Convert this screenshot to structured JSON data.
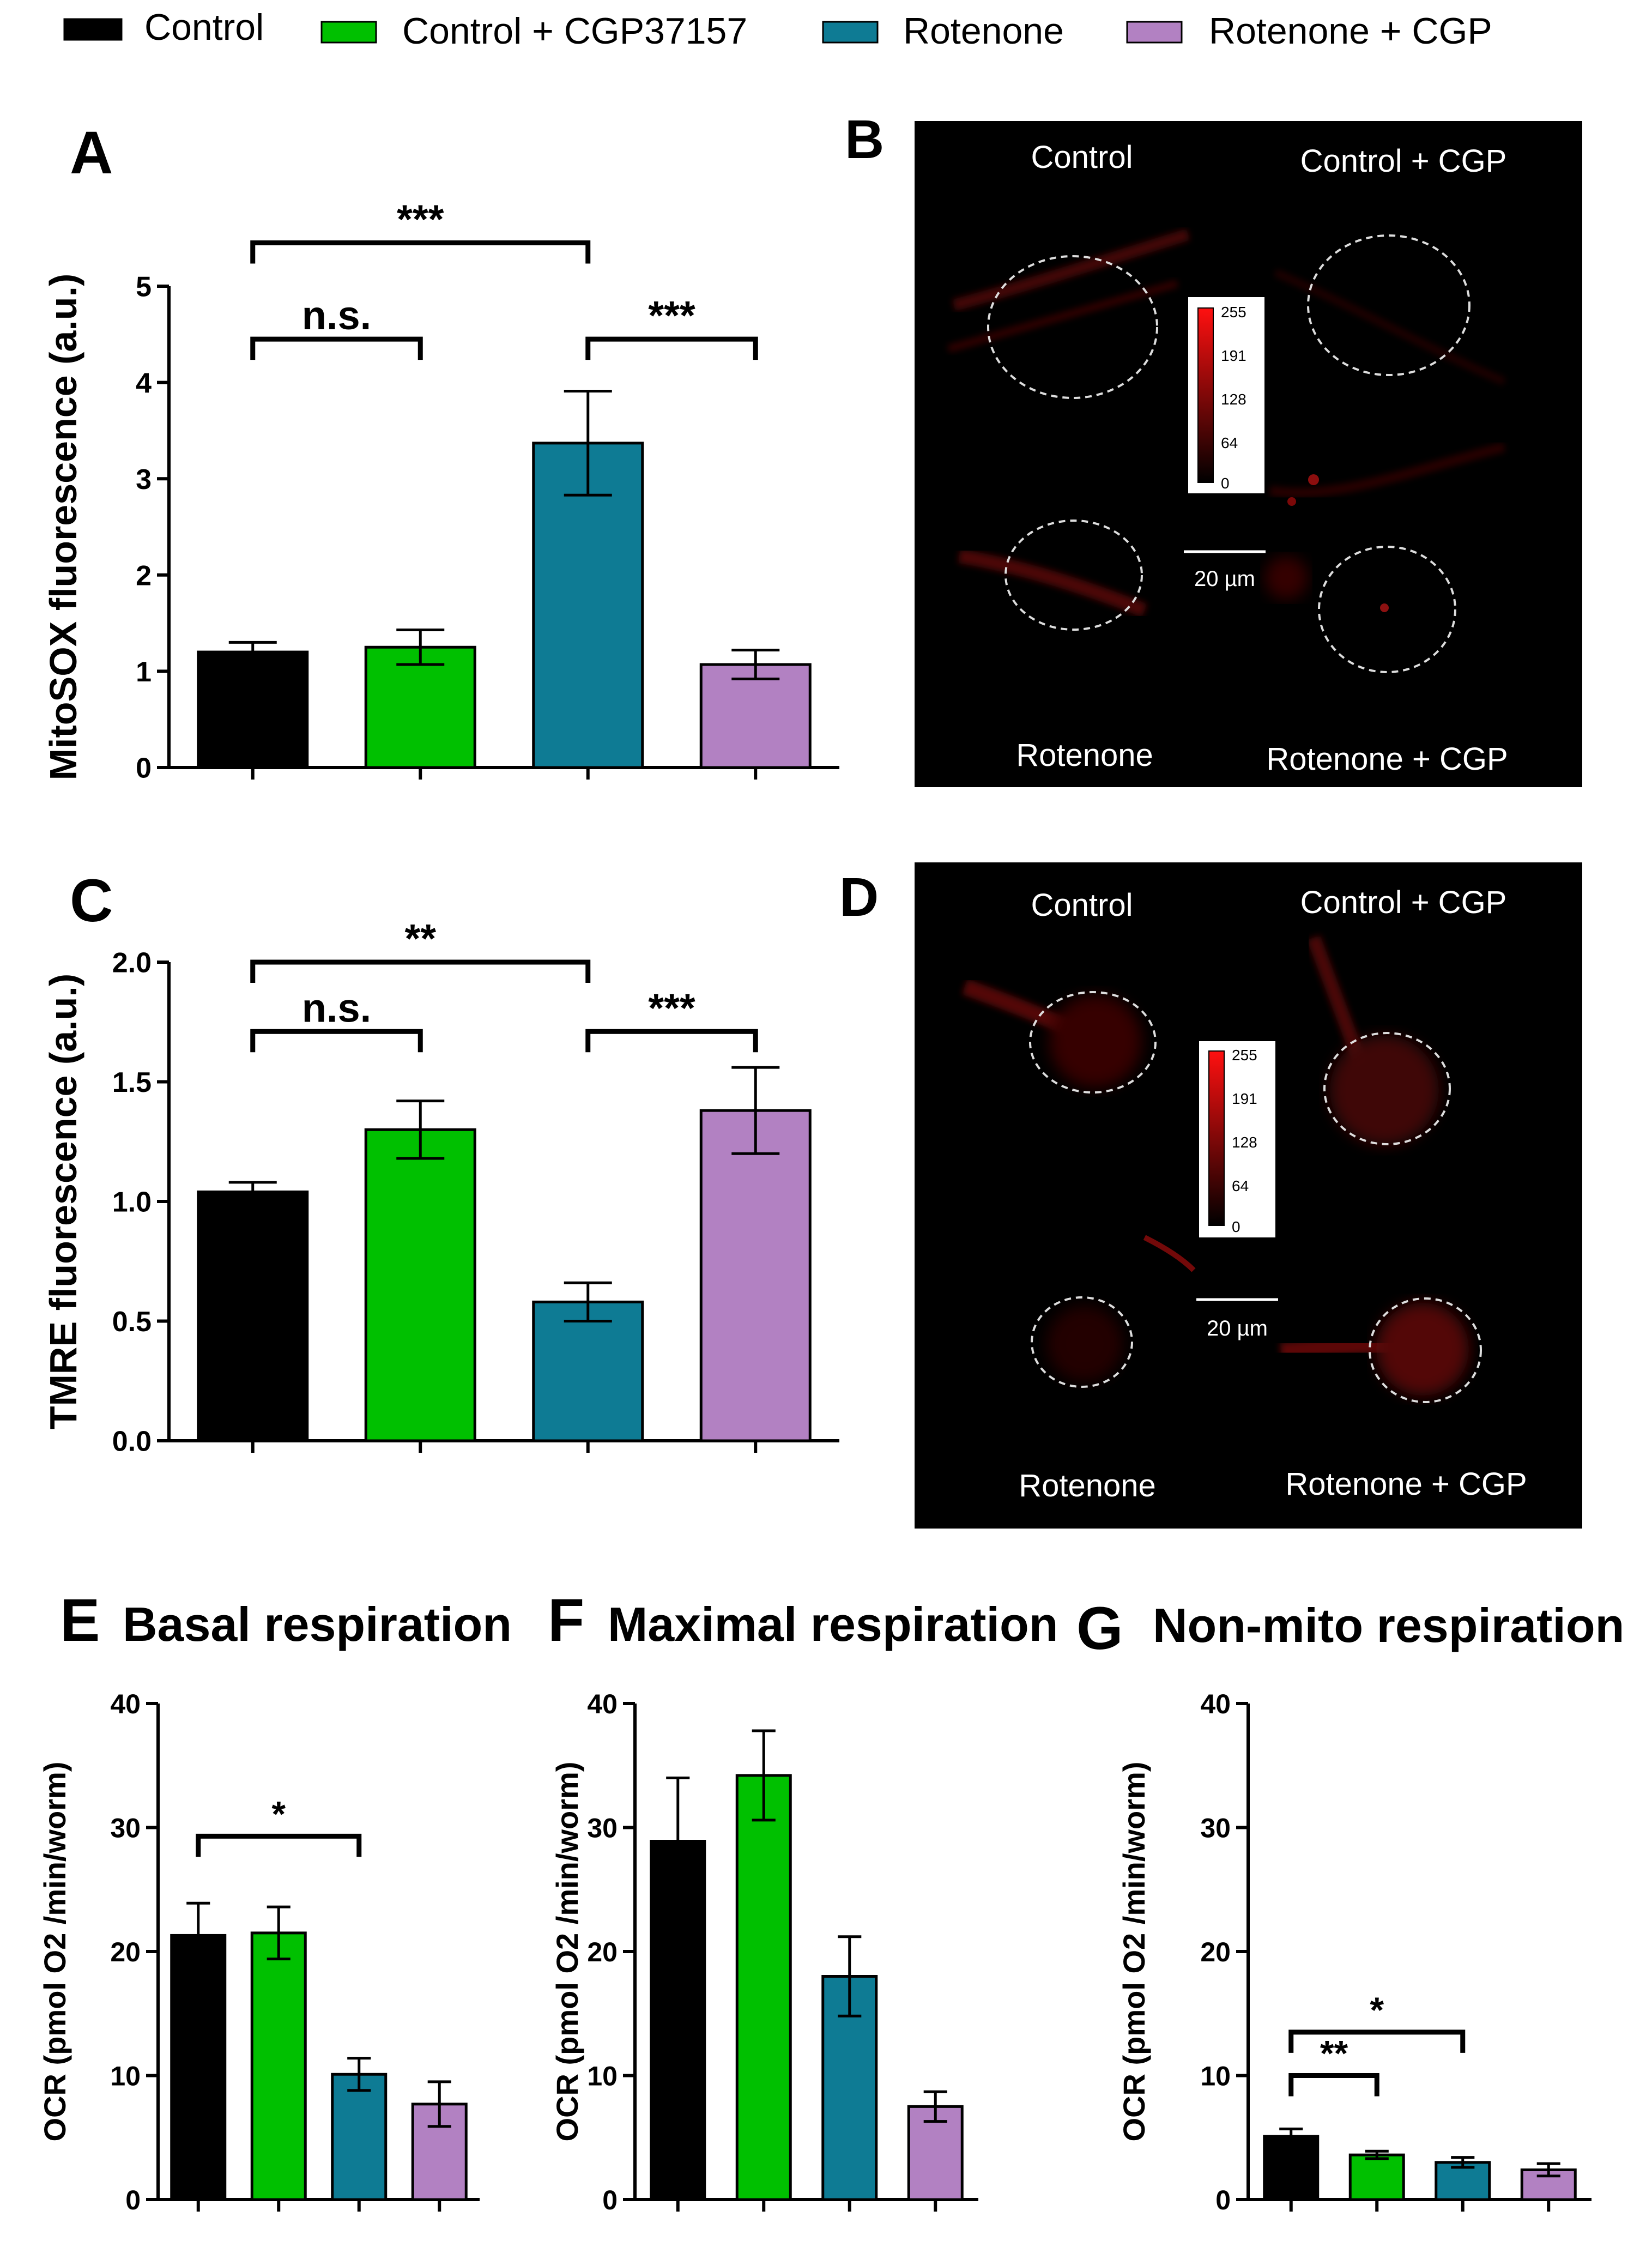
{
  "legend": [
    {
      "label": "Control",
      "color": "#000000"
    },
    {
      "label": "Control + CGP37157",
      "color": "#00c000"
    },
    {
      "label": "Rotenone",
      "color": "#0e7b94"
    },
    {
      "label": "Rotenone + CGP",
      "color": "#b281c2"
    }
  ],
  "chart_data": [
    {
      "panel": "A",
      "type": "bar",
      "title": "",
      "ylabel": "MitoSOX fluorescence (a.u.)",
      "xlabel": "",
      "categories": [
        "Control",
        "Control + CGP37157",
        "Rotenone",
        "Rotenone + CGP"
      ],
      "values": [
        1.2,
        1.25,
        3.37,
        1.07
      ],
      "errors": [
        0.1,
        0.18,
        0.54,
        0.15
      ],
      "ylim": [
        0,
        5
      ],
      "ticks": [
        0,
        1,
        2,
        3,
        4,
        5
      ],
      "significance": [
        {
          "from": 0,
          "to": 2,
          "label": "***",
          "y": 5.45
        },
        {
          "from": 0,
          "to": 1,
          "label": "n.s.",
          "y": 4.45
        },
        {
          "from": 2,
          "to": 3,
          "label": "***",
          "y": 4.45
        }
      ]
    },
    {
      "panel": "C",
      "type": "bar",
      "title": "",
      "ylabel": "TMRE fluorescence (a.u.)",
      "xlabel": "",
      "categories": [
        "Control",
        "Control + CGP37157",
        "Rotenone",
        "Rotenone + CGP"
      ],
      "values": [
        1.04,
        1.3,
        0.58,
        1.38
      ],
      "errors": [
        0.04,
        0.12,
        0.08,
        0.18
      ],
      "ylim": [
        0,
        2
      ],
      "ticks": [
        "0.0",
        "0.5",
        "1.0",
        "1.5",
        "2.0"
      ],
      "significance": [
        {
          "from": 0,
          "to": 2,
          "label": "**",
          "y": 2.0
        },
        {
          "from": 0,
          "to": 1,
          "label": "n.s.",
          "y": 1.71
        },
        {
          "from": 2,
          "to": 3,
          "label": "***",
          "y": 1.71
        }
      ]
    },
    {
      "panel": "E",
      "type": "bar",
      "title": "Basal respiration",
      "ylabel": "OCR (pmol O2 /min/worm)",
      "xlabel": "",
      "categories": [
        "Control",
        "Control + CGP37157",
        "Rotenone",
        "Rotenone + CGP"
      ],
      "values": [
        21.3,
        21.5,
        10.1,
        7.7
      ],
      "errors": [
        2.6,
        2.1,
        1.3,
        1.8
      ],
      "ylim": [
        0,
        40
      ],
      "ticks": [
        0,
        10,
        20,
        30,
        40
      ],
      "significance": [
        {
          "from": 0,
          "to": 2,
          "label": "*",
          "y": 29.3
        }
      ]
    },
    {
      "panel": "F",
      "type": "bar",
      "title": "Maximal respiration",
      "ylabel": "OCR (pmol O2 /min/worm)",
      "xlabel": "",
      "categories": [
        "Control",
        "Control + CGP37157",
        "Rotenone",
        "Rotenone + CGP"
      ],
      "values": [
        28.9,
        34.2,
        18.0,
        7.5
      ],
      "errors": [
        5.1,
        3.6,
        3.2,
        1.2
      ],
      "ylim": [
        0,
        40
      ],
      "ticks": [
        0,
        10,
        20,
        30,
        40
      ],
      "significance": []
    },
    {
      "panel": "G",
      "type": "bar",
      "title": "Non-mito respiration",
      "ylabel": "OCR (pmol O2 /min/worm)",
      "xlabel": "",
      "categories": [
        "Control",
        "Control + CGP37157",
        "Rotenone",
        "Rotenone + CGP"
      ],
      "values": [
        5.1,
        3.6,
        3.0,
        2.4
      ],
      "errors": [
        0.6,
        0.3,
        0.4,
        0.5
      ],
      "ylim": [
        0,
        40
      ],
      "ticks": [
        0,
        10,
        20,
        30,
        40
      ],
      "significance": [
        {
          "from": 0,
          "to": 1,
          "label": "**",
          "y": 10.0
        },
        {
          "from": 0,
          "to": 2,
          "label": "*",
          "y": 13.5
        }
      ]
    }
  ],
  "image_panels": [
    {
      "panel": "B",
      "quadrants": [
        "Control",
        "Control + CGP",
        "Rotenone",
        "Rotenone + CGP"
      ],
      "colorbar_ticks": [
        "255",
        "191",
        "128",
        "64",
        "0"
      ],
      "scale_bar": "20 µm"
    },
    {
      "panel": "D",
      "quadrants": [
        "Control",
        "Control + CGP",
        "Rotenone",
        "Rotenone + CGP"
      ],
      "colorbar_ticks": [
        "255",
        "191",
        "128",
        "64",
        "0"
      ],
      "scale_bar": "20 µm"
    }
  ]
}
